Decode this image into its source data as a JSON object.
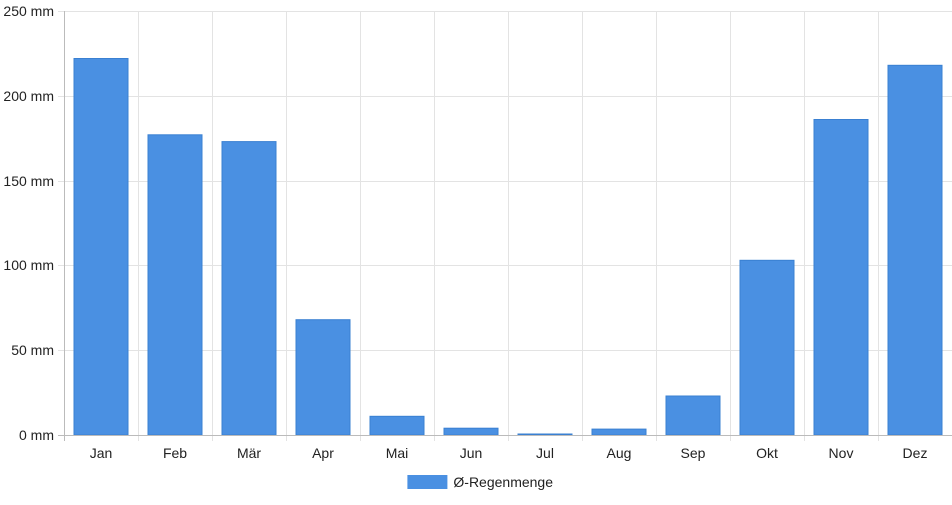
{
  "chart_data": {
    "type": "bar",
    "title": "",
    "xlabel": "",
    "ylabel": "",
    "categories": [
      "Jan",
      "Feb",
      "Mär",
      "Apr",
      "Mai",
      "Jun",
      "Jul",
      "Aug",
      "Sep",
      "Okt",
      "Nov",
      "Dez"
    ],
    "series": [
      {
        "name": "Ø-Regenmenge",
        "values": [
          222,
          177,
          173,
          68,
          11,
          4,
          0.5,
          3.5,
          23,
          103,
          186,
          218
        ],
        "color": "#4a90e2"
      }
    ],
    "ylim": [
      0,
      250
    ],
    "yticks": [
      0,
      50,
      100,
      150,
      200,
      250
    ],
    "y_tick_unit": "mm",
    "grid": true,
    "legend_position": "bottom-center"
  }
}
